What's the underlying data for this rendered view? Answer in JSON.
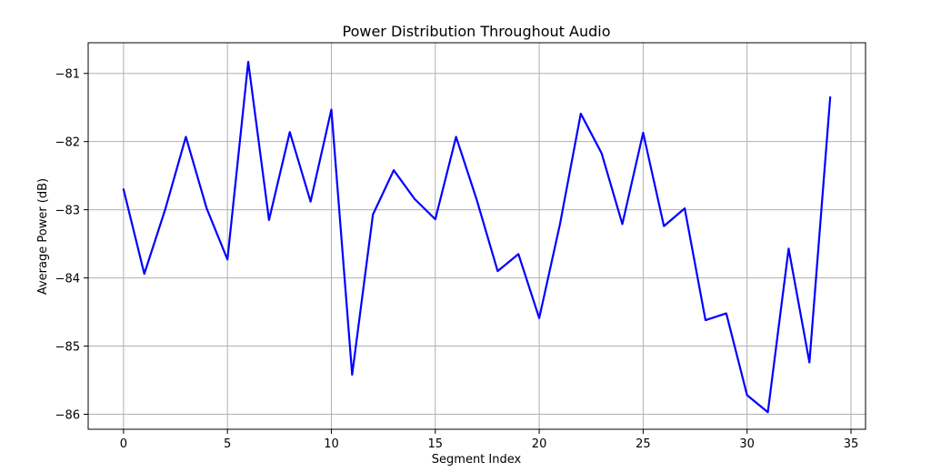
{
  "chart_data": {
    "type": "line",
    "title": "Power Distribution Throughout Audio",
    "xlabel": "Segment Index",
    "ylabel": "Average Power (dB)",
    "xlim": [
      -1.7,
      35.7
    ],
    "ylim": [
      -86.22,
      -80.55
    ],
    "grid": true,
    "x_ticks": [
      0,
      5,
      10,
      15,
      20,
      25,
      30,
      35
    ],
    "x_tick_labels": [
      "0",
      "5",
      "10",
      "15",
      "20",
      "25",
      "30",
      "35"
    ],
    "y_ticks": [
      -81,
      -82,
      -83,
      -84,
      -85,
      -86
    ],
    "y_tick_labels": [
      "−81",
      "−82",
      "−83",
      "−84",
      "−85",
      "−86"
    ],
    "series": [
      {
        "color": "#0000ff",
        "x": [
          0,
          1,
          2,
          3,
          4,
          5,
          6,
          7,
          8,
          9,
          10,
          11,
          12,
          13,
          14,
          15,
          16,
          17,
          18,
          19,
          20,
          21,
          22,
          23,
          24,
          25,
          26,
          27,
          28,
          29,
          30,
          31,
          32,
          33,
          34
        ],
        "values": [
          -82.7,
          -83.94,
          -83.0,
          -81.93,
          -82.98,
          -83.73,
          -80.83,
          -83.15,
          -81.86,
          -82.88,
          -81.53,
          -85.42,
          -83.07,
          -82.42,
          -82.84,
          -83.14,
          -81.93,
          -82.86,
          -83.9,
          -83.65,
          -84.59,
          -83.21,
          -81.59,
          -82.17,
          -83.21,
          -81.87,
          -83.24,
          -82.98,
          -84.62,
          -84.52,
          -85.72,
          -85.97,
          -83.57,
          -85.24,
          -81.35
        ]
      }
    ]
  }
}
